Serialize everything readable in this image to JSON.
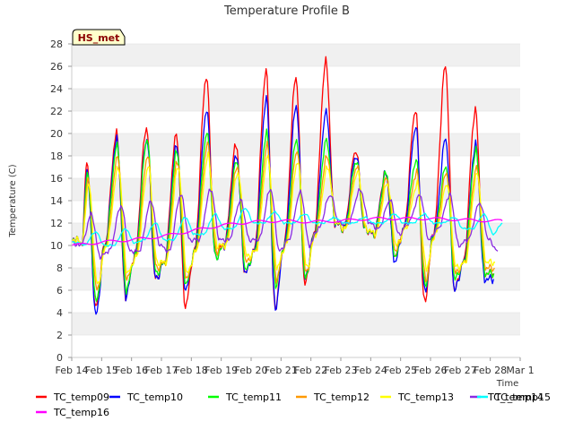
{
  "badge": "HS_met",
  "chart_data": {
    "type": "line",
    "title": "Temperature Profile B",
    "xlabel": "Time",
    "ylabel": "Temperature (C)",
    "ylim": [
      0,
      28
    ],
    "yticks": [
      0,
      2,
      4,
      6,
      8,
      10,
      12,
      14,
      16,
      18,
      20,
      22,
      24,
      26,
      28
    ],
    "xlim": [
      0,
      15
    ],
    "x_unit": "days since Feb 14",
    "xticks": [
      {
        "x": 0,
        "label": "Feb 14"
      },
      {
        "x": 1,
        "label": "Feb 15"
      },
      {
        "x": 2,
        "label": "Feb 16"
      },
      {
        "x": 3,
        "label": "Feb 17"
      },
      {
        "x": 4,
        "label": "Feb 18"
      },
      {
        "x": 5,
        "label": "Feb 19"
      },
      {
        "x": 6,
        "label": "Feb 20"
      },
      {
        "x": 7,
        "label": "Feb 21"
      },
      {
        "x": 8,
        "label": "Feb 22"
      },
      {
        "x": 9,
        "label": "Feb 23"
      },
      {
        "x": 10,
        "label": "Feb 24"
      },
      {
        "x": 11,
        "label": "Feb 25"
      },
      {
        "x": 12,
        "label": "Feb 26"
      },
      {
        "x": 13,
        "label": "Feb 27"
      },
      {
        "x": 14,
        "label": "Feb 28"
      },
      {
        "x": 15,
        "label": "Mar 1"
      }
    ],
    "grid": "horizontal bands",
    "legend_position": "bottom",
    "series": [
      {
        "name": "TC_temp09",
        "color": "#ff0000",
        "amp_scale": 1.0,
        "lag": 0.0,
        "daily": [
          [
            10.5,
            17.5,
            4.5
          ],
          [
            10.0,
            20.0,
            5.5
          ],
          [
            9.0,
            20.5,
            7.0
          ],
          [
            8.5,
            20.0,
            4.5
          ],
          [
            9.5,
            25.0,
            9.5
          ],
          [
            10.0,
            19.0,
            7.5
          ],
          [
            9.5,
            25.5,
            4.5
          ],
          [
            10.0,
            25.0,
            6.5
          ],
          [
            11.0,
            26.5,
            12.0
          ],
          [
            11.5,
            18.5,
            11.5
          ],
          [
            11.0,
            16.5,
            9.0
          ],
          [
            11.5,
            22.0,
            5.0
          ],
          [
            11.0,
            26.0,
            6.0
          ],
          [
            8.5,
            22.0,
            7.5
          ],
          [
            7.5,
            null,
            null
          ]
        ]
      },
      {
        "name": "TC_temp10",
        "color": "#0000ff",
        "amp_scale": 1.0,
        "lag": 0.01,
        "daily": [
          [
            10.5,
            16.8,
            3.8
          ],
          [
            10.0,
            19.5,
            5.5
          ],
          [
            9.0,
            19.5,
            7.0
          ],
          [
            8.5,
            19.0,
            6.0
          ],
          [
            9.5,
            22.0,
            9.0
          ],
          [
            10.0,
            18.0,
            7.5
          ],
          [
            9.5,
            23.0,
            4.5
          ],
          [
            10.0,
            22.5,
            7.0
          ],
          [
            11.0,
            22.0,
            12.0
          ],
          [
            11.5,
            18.0,
            11.5
          ],
          [
            11.0,
            16.5,
            8.5
          ],
          [
            11.5,
            20.5,
            6.0
          ],
          [
            11.0,
            19.5,
            6.0
          ],
          [
            8.5,
            19.0,
            7.0
          ],
          [
            7.0,
            null,
            null
          ]
        ]
      },
      {
        "name": "TC_temp11",
        "color": "#00ff00",
        "amp_scale": 0.9,
        "lag": 0.02,
        "daily": [
          [
            10.5,
            16.5,
            5.0
          ],
          [
            10.0,
            19.0,
            6.0
          ],
          [
            9.0,
            19.5,
            7.5
          ],
          [
            8.5,
            18.5,
            6.5
          ],
          [
            9.5,
            20.0,
            9.0
          ],
          [
            10.0,
            17.5,
            7.8
          ],
          [
            9.5,
            20.0,
            6.5
          ],
          [
            10.0,
            19.5,
            7.0
          ],
          [
            11.0,
            19.5,
            12.0
          ],
          [
            11.5,
            17.5,
            11.5
          ],
          [
            11.0,
            16.5,
            9.0
          ],
          [
            11.5,
            17.5,
            6.5
          ],
          [
            11.0,
            17.0,
            7.0
          ],
          [
            8.5,
            18.5,
            7.5
          ],
          [
            7.5,
            null,
            null
          ]
        ]
      },
      {
        "name": "TC_temp12",
        "color": "#ff9900",
        "amp_scale": 0.85,
        "lag": 0.04,
        "daily": [
          [
            10.5,
            16.0,
            6.0
          ],
          [
            10.0,
            18.0,
            7.0
          ],
          [
            9.0,
            18.0,
            8.0
          ],
          [
            8.5,
            17.5,
            7.0
          ],
          [
            9.5,
            19.0,
            9.5
          ],
          [
            10.0,
            17.0,
            8.5
          ],
          [
            9.5,
            19.0,
            7.0
          ],
          [
            10.0,
            18.5,
            7.5
          ],
          [
            11.0,
            18.0,
            12.0
          ],
          [
            11.5,
            17.0,
            11.5
          ],
          [
            11.0,
            16.0,
            9.5
          ],
          [
            11.5,
            16.5,
            7.0
          ],
          [
            11.0,
            16.5,
            7.5
          ],
          [
            8.5,
            17.0,
            8.0
          ],
          [
            8.0,
            null,
            null
          ]
        ]
      },
      {
        "name": "TC_temp13",
        "color": "#ffff00",
        "amp_scale": 0.8,
        "lag": 0.06,
        "daily": [
          [
            10.5,
            15.5,
            6.5
          ],
          [
            10.0,
            17.0,
            7.5
          ],
          [
            9.0,
            17.0,
            8.5
          ],
          [
            8.5,
            17.0,
            7.5
          ],
          [
            9.5,
            18.0,
            10.0
          ],
          [
            10.0,
            16.5,
            9.0
          ],
          [
            9.5,
            18.0,
            8.0
          ],
          [
            10.0,
            17.5,
            8.0
          ],
          [
            11.0,
            17.0,
            12.0
          ],
          [
            11.5,
            16.5,
            11.5
          ],
          [
            11.0,
            15.5,
            10.0
          ],
          [
            11.5,
            15.5,
            8.0
          ],
          [
            11.0,
            15.5,
            8.0
          ],
          [
            8.5,
            16.5,
            8.5
          ],
          [
            8.5,
            null,
            null
          ]
        ]
      },
      {
        "name": "TC_temp14",
        "color": "#8a2be2",
        "amp_scale": 0.5,
        "lag": 0.15,
        "daily": [
          [
            10.0,
            12.8,
            9.0
          ],
          [
            9.5,
            13.5,
            9.5
          ],
          [
            9.5,
            14.0,
            10.0
          ],
          [
            9.5,
            14.5,
            10.5
          ],
          [
            10.5,
            15.0,
            10.5
          ],
          [
            10.5,
            14.0,
            10.5
          ],
          [
            10.5,
            15.0,
            9.5
          ],
          [
            10.5,
            14.8,
            10.0
          ],
          [
            11.5,
            14.5,
            12.0
          ],
          [
            12.0,
            15.0,
            12.0
          ],
          [
            11.5,
            14.0,
            11.0
          ],
          [
            12.0,
            14.5,
            10.5
          ],
          [
            11.5,
            14.5,
            10.0
          ],
          [
            10.5,
            13.8,
            10.5
          ],
          [
            9.5,
            null,
            null
          ]
        ]
      },
      {
        "name": "TC_temp15",
        "color": "#00ffff",
        "amp_scale": 0.22,
        "lag": 0.3,
        "daily": [
          [
            10.0,
            11.2,
            10.0
          ],
          [
            10.0,
            11.5,
            10.2
          ],
          [
            10.5,
            12.0,
            10.5
          ],
          [
            10.5,
            12.5,
            11.0
          ],
          [
            11.0,
            12.8,
            11.5
          ],
          [
            11.5,
            13.3,
            12.0
          ],
          [
            12.0,
            13.0,
            12.0
          ],
          [
            12.0,
            12.8,
            12.0
          ],
          [
            12.0,
            12.5,
            12.0
          ],
          [
            12.0,
            12.5,
            12.0
          ],
          [
            12.0,
            12.8,
            12.0
          ],
          [
            12.0,
            12.8,
            12.0
          ],
          [
            12.0,
            12.5,
            11.5
          ],
          [
            11.5,
            12.8,
            11.0
          ],
          [
            12.0,
            null,
            null
          ]
        ]
      },
      {
        "name": "TC_temp16",
        "color": "#ff00ff",
        "amp_scale": 0.0,
        "lag": 0.0,
        "smooth": [
          [
            0,
            10.0
          ],
          [
            1,
            10.3
          ],
          [
            2,
            10.5
          ],
          [
            3,
            10.8
          ],
          [
            4,
            11.3
          ],
          [
            5,
            11.8
          ],
          [
            6,
            12.1
          ],
          [
            7,
            12.2
          ],
          [
            8,
            12.1
          ],
          [
            9,
            12.2
          ],
          [
            10,
            12.4
          ],
          [
            11,
            12.4
          ],
          [
            12,
            12.4
          ],
          [
            13,
            12.3
          ],
          [
            14,
            12.2
          ],
          [
            14.4,
            12.2
          ]
        ]
      }
    ]
  }
}
